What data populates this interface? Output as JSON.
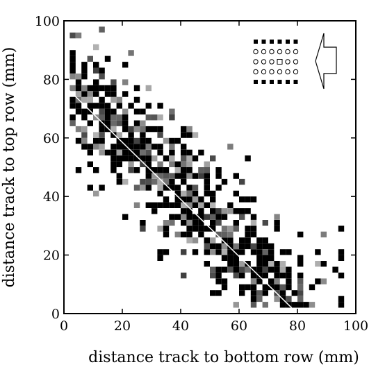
{
  "chart_data": {
    "type": "heatmap",
    "title": "",
    "xlabel": "distance track to bottom row (mm)",
    "ylabel": "distance track to top row (mm)",
    "xlim": [
      0,
      100
    ],
    "ylim": [
      0,
      100
    ],
    "x_ticks": [
      "0",
      "20",
      "40",
      "60",
      "80",
      "100"
    ],
    "y_ticks": [
      "0",
      "20",
      "40",
      "60",
      "80",
      "100"
    ],
    "bin_size_mm": 2,
    "grid": false,
    "fit_line": {
      "x": [
        0,
        78
      ],
      "y": [
        78,
        2
      ],
      "color": "#ffffff"
    },
    "inset_symbols": {
      "rows": [
        "filled",
        "open",
        "open",
        "open",
        "filled"
      ],
      "columns": 6,
      "marked": {
        "row": 2,
        "col": 3,
        "symbol": "square"
      }
    },
    "colors": {
      "frame": "#000000",
      "fit_line": "#ffffff",
      "cell_dark": "#000000"
    }
  }
}
